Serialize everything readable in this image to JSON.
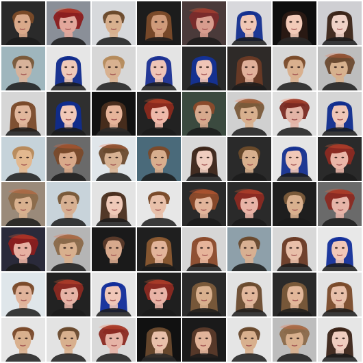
{
  "grid": {
    "rows": 8,
    "cols": 8,
    "background": "#ffffff"
  },
  "tiles": [
    {
      "bg": "#2a2a2a",
      "hair": "#7a4a28",
      "skin": "#d9a98a",
      "style": "short"
    },
    {
      "bg": "#8a8f98",
      "hair": "#8b1e1e",
      "skin": "#e2a79b",
      "style": "distorted"
    },
    {
      "bg": "#d7d9dc",
      "hair": "#6b4a2b",
      "skin": "#d8b08e",
      "style": "short"
    },
    {
      "bg": "#1c1c1c",
      "hair": "#7b4b2a",
      "skin": "#cf9b7a",
      "style": "long"
    },
    {
      "bg": "#4a3a3a",
      "hair": "#7a2b2b",
      "skin": "#d79c8e",
      "style": "distorted"
    },
    {
      "bg": "#d8d8dc",
      "hair": "#142f8f",
      "skin": "#f0c7b6",
      "style": "long"
    },
    {
      "bg": "#0e0e0e",
      "hair": "#2b1a14",
      "skin": "#f2cab8",
      "style": "long"
    },
    {
      "bg": "#cfcfd3",
      "hair": "#3b2418",
      "skin": "#f0d2c7",
      "style": "long"
    },
    {
      "bg": "#9fb6bd",
      "hair": "#7a5a3a",
      "skin": "#d7b29a",
      "style": "short"
    },
    {
      "bg": "#e6e6e6",
      "hair": "#0f2a8c",
      "skin": "#efc9b9",
      "style": "long"
    },
    {
      "bg": "#d7d7d7",
      "hair": "#b58b5c",
      "skin": "#d8b190",
      "style": "short"
    },
    {
      "bg": "#e4e4e4",
      "hair": "#1a2f92",
      "skin": "#efc5b7",
      "style": "long"
    },
    {
      "bg": "#2a2a2a",
      "hair": "#143296",
      "skin": "#efc4b6",
      "style": "long"
    },
    {
      "bg": "#2e2a28",
      "hair": "#6a3a25",
      "skin": "#e0b09a",
      "style": "long"
    },
    {
      "bg": "#d7d7d7",
      "hair": "#7a4b2a",
      "skin": "#d9b08e",
      "style": "short"
    },
    {
      "bg": "#bdbdbd",
      "hair": "#6b4a30",
      "skin": "#d7b18e",
      "style": "distorted"
    },
    {
      "bg": "#d6d6d6",
      "hair": "#7a4a2a",
      "skin": "#e1b79c",
      "style": "long"
    },
    {
      "bg": "#2f2f2f",
      "hair": "#102c8e",
      "skin": "#f1c8b8",
      "style": "long"
    },
    {
      "bg": "#111111",
      "hair": "#4a2e1e",
      "skin": "#e6b49a",
      "style": "long"
    },
    {
      "bg": "#222222",
      "hair": "#8a2a1e",
      "skin": "#efb8a9",
      "style": "distorted"
    },
    {
      "bg": "#3b4a3f",
      "hair": "#8b4a2b",
      "skin": "#d7a98d",
      "style": "short"
    },
    {
      "bg": "#d0d0d0",
      "hair": "#7a5a3a",
      "skin": "#d8b08e",
      "style": "distorted"
    },
    {
      "bg": "#e0e0e0",
      "hair": "#7a2a22",
      "skin": "#e3b4a6",
      "style": "distorted"
    },
    {
      "bg": "#d5d5d5",
      "hair": "#0f2c8e",
      "skin": "#efc6b7",
      "style": "long"
    },
    {
      "bg": "#c6d3da",
      "hair": "#b88a5b",
      "skin": "#e2b88f",
      "style": "short"
    },
    {
      "bg": "#6a6a6a",
      "hair": "#7a4a2b",
      "skin": "#d8a98a",
      "style": "distorted"
    },
    {
      "bg": "#e0e6ea",
      "hair": "#6a4a2e",
      "skin": "#d7b293",
      "style": "distorted"
    },
    {
      "bg": "#4a6a7a",
      "hair": "#7a4a2b",
      "skin": "#d8ae8e",
      "style": "short"
    },
    {
      "bg": "#d9d9d9",
      "hair": "#3b2418",
      "skin": "#efcdbf",
      "style": "long"
    },
    {
      "bg": "#2a2a2a",
      "hair": "#6a4a2a",
      "skin": "#d8b08e",
      "style": "short"
    },
    {
      "bg": "#e5e5e5",
      "hair": "#142f8f",
      "skin": "#f1c8b8",
      "style": "long"
    },
    {
      "bg": "#2a2a2a",
      "hair": "#8b2a22",
      "skin": "#eab6a8",
      "style": "distorted"
    },
    {
      "bg": "#9a8a7a",
      "hair": "#8b6a4a",
      "skin": "#d8b08e",
      "style": "distorted"
    },
    {
      "bg": "#c8d3da",
      "hair": "#7a5a3a",
      "skin": "#d7b092",
      "style": "short"
    },
    {
      "bg": "#e3e3e3",
      "hair": "#4a2e1e",
      "skin": "#efc9b8",
      "style": "long"
    },
    {
      "bg": "#e7e7e7",
      "hair": "#7a4b2a",
      "skin": "#e8c0aa",
      "style": "short"
    },
    {
      "bg": "#2a2a2a",
      "hair": "#8b4a2b",
      "skin": "#e2b49a",
      "style": "distorted"
    },
    {
      "bg": "#2a2a2a",
      "hair": "#8b2a22",
      "skin": "#e8b3a6",
      "style": "distorted"
    },
    {
      "bg": "#1e1e1e",
      "hair": "#7a5a3a",
      "skin": "#d9b08e",
      "style": "short"
    },
    {
      "bg": "#6a6a6a",
      "hair": "#8b2a22",
      "skin": "#e6b4a8",
      "style": "distorted"
    },
    {
      "bg": "#2a2a3a",
      "hair": "#8b1e1e",
      "skin": "#e7b0a2",
      "style": "distorted"
    },
    {
      "bg": "#b5b5b5",
      "hair": "#8b6a4a",
      "skin": "#d8b08e",
      "style": "distorted"
    },
    {
      "bg": "#1a1a1a",
      "hair": "#5a3a2a",
      "skin": "#d7a98d",
      "style": "short"
    },
    {
      "bg": "#1f1f1f",
      "hair": "#8b5a32",
      "skin": "#e2b49a",
      "style": "long"
    },
    {
      "bg": "#d6d6d6",
      "hair": "#8b4a2b",
      "skin": "#e6b49a",
      "style": "long"
    },
    {
      "bg": "#8ea0aa",
      "hair": "#6a4a2e",
      "skin": "#d8b092",
      "style": "short"
    },
    {
      "bg": "#d8d8d8",
      "hair": "#6a3a25",
      "skin": "#e8bfa9",
      "style": "long"
    },
    {
      "bg": "#e8e8e8",
      "hair": "#132f9a",
      "skin": "#f1c7b8",
      "style": "long"
    },
    {
      "bg": "#dfe6ea",
      "hair": "#7a4a2a",
      "skin": "#e0b39a",
      "style": "short"
    },
    {
      "bg": "#222222",
      "hair": "#8b2a22",
      "skin": "#e6b3a6",
      "style": "distorted"
    },
    {
      "bg": "#e5e5e5",
      "hair": "#102c9a",
      "skin": "#f0c7b8",
      "style": "long"
    },
    {
      "bg": "#1f1f1f",
      "hair": "#8b2a22",
      "skin": "#e8b3a6",
      "style": "distorted"
    },
    {
      "bg": "#2a2a2a",
      "hair": "#7a5a3a",
      "skin": "#d8b08e",
      "style": "long"
    },
    {
      "bg": "#e2e2e2",
      "hair": "#6a4a2e",
      "skin": "#e1b79c",
      "style": "long"
    },
    {
      "bg": "#2a2a2a",
      "hair": "#7a5a3a",
      "skin": "#e2b79a",
      "style": "long"
    },
    {
      "bg": "#e3e3e3",
      "hair": "#7a4a2a",
      "skin": "#e8c0aa",
      "style": "long"
    },
    {
      "bg": "#e6e6e6",
      "hair": "#7a4a2b",
      "skin": "#d9b08e",
      "style": "short"
    },
    {
      "bg": "#e3e3e3",
      "hair": "#6a4a2e",
      "skin": "#d8b08e",
      "style": "short"
    },
    {
      "bg": "#d9d9d9",
      "hair": "#8b2a22",
      "skin": "#e6b3a6",
      "style": "distorted"
    },
    {
      "bg": "#111111",
      "hair": "#6a4a2e",
      "skin": "#e8c0aa",
      "style": "long"
    },
    {
      "bg": "#1a1a1a",
      "hair": "#5a3a2a",
      "skin": "#e2b49a",
      "style": "long"
    },
    {
      "bg": "#e5e5e5",
      "hair": "#6a4a2e",
      "skin": "#d8b08e",
      "style": "short"
    },
    {
      "bg": "#bdbdbd",
      "hair": "#8b6a4a",
      "skin": "#d8b08e",
      "style": "distorted"
    },
    {
      "bg": "#e6e6e6",
      "hair": "#3b2418",
      "skin": "#efcdbf",
      "style": "long"
    }
  ]
}
